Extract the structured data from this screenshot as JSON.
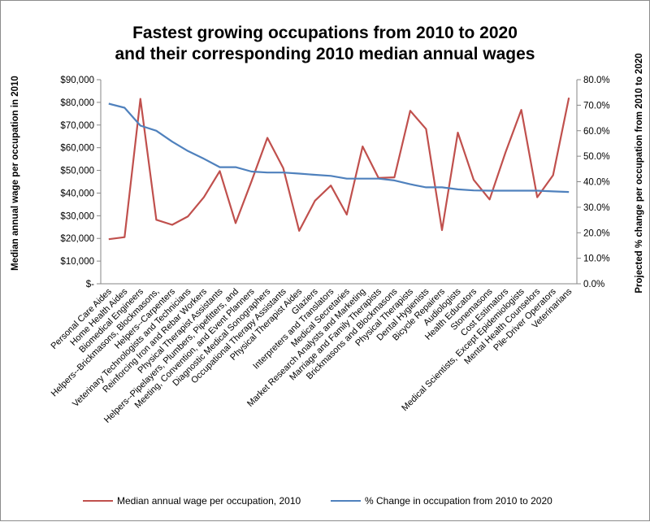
{
  "chart_data": {
    "type": "line",
    "title": [
      "Fastest growing occupations from 2010 to 2020",
      "and their corresponding 2010 median annual wages"
    ],
    "ylabel_left": "Median annual wage per occupation in 2010",
    "ylabel_right": "Projected % change per occupation from 2010 to 2020",
    "y_left_ticks": [
      "$90,000",
      "$80,000",
      "$70,000",
      "$60,000",
      "$50,000",
      "$40,000",
      "$30,000",
      "$20,000",
      "$10,000",
      "$-"
    ],
    "y_right_ticks": [
      "80.0%",
      "70.0%",
      "60.0%",
      "50.0%",
      "40.0%",
      "30.0%",
      "20.0%",
      "10.0%",
      "0.0%"
    ],
    "y_left_range": [
      0,
      90000
    ],
    "y_right_range": [
      0,
      0.8
    ],
    "grid": false,
    "legend_position": "bottom",
    "categories": [
      "Personal Care Aides",
      "Home Health Aides",
      "Biomedical Engineers",
      "Helpers--Brickmasons, Blockmasons,",
      "Helpers--Carpenters",
      "Veterinary Technologists and Technicians",
      "Reinforcing Iron and Rebar Workers",
      "Physical Therapist Assistants",
      "Helpers--Pipelayers, Plumbers, Pipefitters, and",
      "Meeting, Convention, and Event Planners",
      "Diagnostic Medical Sonographers",
      "Occupational Therapy Assistants",
      "Physical Therapist Aides",
      "Glaziers",
      "Interpreters and Translators",
      "Medical Secretaries",
      "Market Research Analysts and Marketing",
      "Marriage and Family Therapists",
      "Brickmasons and Blockmasons",
      "Physical Therapists",
      "Dental Hygienists",
      "Bicycle Repairers",
      "Audiologists",
      "Health Educators",
      "Stonemasons",
      "Cost Estimators",
      "Medical Scientists, Except Epidemiologists",
      "Mental Health Counselors",
      "Pile-Driver Operators",
      "Veterinarians"
    ],
    "series": [
      {
        "name": "Median annual wage per occupation, 2010",
        "axis": "left",
        "color": "#c0504d",
        "values": [
          19640,
          20560,
          81540,
          28220,
          26000,
          29710,
          38220,
          49690,
          26740,
          45260,
          64380,
          51010,
          23340,
          36640,
          43300,
          30530,
          60570,
          46670,
          46930,
          76310,
          68250,
          23660,
          66660,
          45830,
          37180,
          57860,
          76700,
          38150,
          47860,
          82040
        ]
      },
      {
        "name": "% Change in occupation from 2010 to 2020",
        "axis": "right",
        "color": "#4f81bd",
        "values": [
          0.706,
          0.69,
          0.62,
          0.6,
          0.557,
          0.52,
          0.49,
          0.457,
          0.457,
          0.44,
          0.436,
          0.436,
          0.432,
          0.427,
          0.423,
          0.412,
          0.412,
          0.412,
          0.405,
          0.39,
          0.378,
          0.378,
          0.37,
          0.366,
          0.365,
          0.365,
          0.365,
          0.365,
          0.362,
          0.36
        ]
      }
    ]
  }
}
